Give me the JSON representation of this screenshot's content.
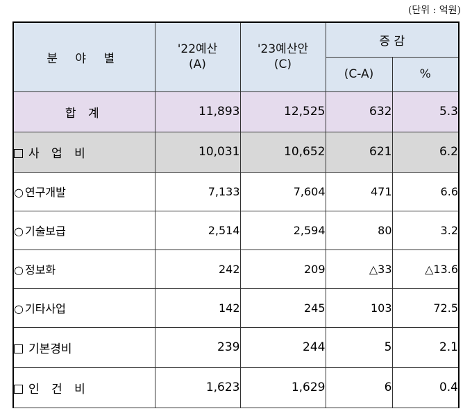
{
  "unit_note": "(단위 : 억원)",
  "header": {
    "field": "분 야 별",
    "col_2022_line1": "'22예산",
    "col_2022_line2": "(A)",
    "col_2023_line1": "'23예산안",
    "col_2023_line2": "(C)",
    "change": "증 감",
    "change_amount": "(C-A)",
    "change_pct": "%"
  },
  "rows": [
    {
      "label": "합 계",
      "y2022": "11,893",
      "y2023": "12,525",
      "diff": "632",
      "pct": "5.3"
    },
    {
      "label": "사 업 비",
      "y2022": "10,031",
      "y2023": "10,652",
      "diff": "621",
      "pct": "6.2"
    },
    {
      "label": "연구개발",
      "y2022": "7,133",
      "y2023": "7,604",
      "diff": "471",
      "pct": "6.6"
    },
    {
      "label": "기술보급",
      "y2022": "2,514",
      "y2023": "2,594",
      "diff": "80",
      "pct": "3.2"
    },
    {
      "label": "정보화",
      "y2022": "242",
      "y2023": "209",
      "diff": "△33",
      "pct": "△13.6"
    },
    {
      "label": "기타사업",
      "y2022": "142",
      "y2023": "245",
      "diff": "103",
      "pct": "72.5"
    },
    {
      "label": "기본경비",
      "y2022": "239",
      "y2023": "244",
      "diff": "5",
      "pct": "2.1"
    },
    {
      "label": "인 건 비",
      "y2022": "1,623",
      "y2023": "1,629",
      "diff": "6",
      "pct": "0.4"
    }
  ],
  "icons": {
    "bullet": "ring-bullet-icon",
    "checkbox": "empty-square-icon"
  }
}
